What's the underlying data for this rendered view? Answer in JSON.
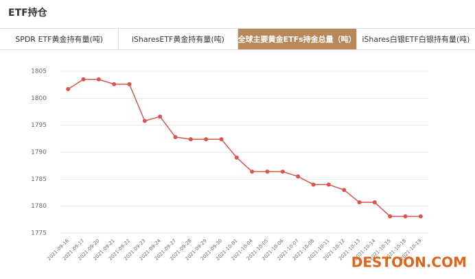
{
  "header": {
    "title": "ETF持仓"
  },
  "tabs": {
    "items": [
      "SPDR ETF黄金持有量(吨)",
      "iSharesETF黄金持有量(吨)",
      "全球主要黄金ETFs持金总量（吨）",
      "iShares白银ETF白银持有量(吨)"
    ],
    "active": 2
  },
  "watermark": "DESTOON.COM",
  "chart_data": {
    "type": "line",
    "categories": [
      "2021-09-16",
      "2021-09-17",
      "2021-09-20",
      "2021-09-21",
      "2021-09-22",
      "2021-09-23",
      "2021-09-24",
      "2021-09-27",
      "2021-09-28",
      "2021-09-29",
      "2021-09-30",
      "2021-10-01",
      "2021-10-04",
      "2021-10-05",
      "2021-10-06",
      "2021-10-07",
      "2021-10-08",
      "2021-10-11",
      "2021-10-12",
      "2021-10-13",
      "2021-10-14",
      "2021-10-15",
      "2021-10-18",
      "2021-10-19"
    ],
    "values": [
      1801.7,
      1803.5,
      1803.5,
      1802.6,
      1802.6,
      1795.8,
      1796.6,
      1792.8,
      1792.4,
      1792.4,
      1792.4,
      1789.0,
      1786.4,
      1786.4,
      1786.4,
      1785.5,
      1784.0,
      1784.0,
      1783.0,
      1780.7,
      1780.7,
      1778.1,
      1778.1,
      1778.1
    ],
    "color": "#d9534f",
    "ylim": [
      1775,
      1805
    ],
    "yticks": [
      1775,
      1780,
      1785,
      1790,
      1795,
      1800,
      1805
    ],
    "grid": true
  }
}
